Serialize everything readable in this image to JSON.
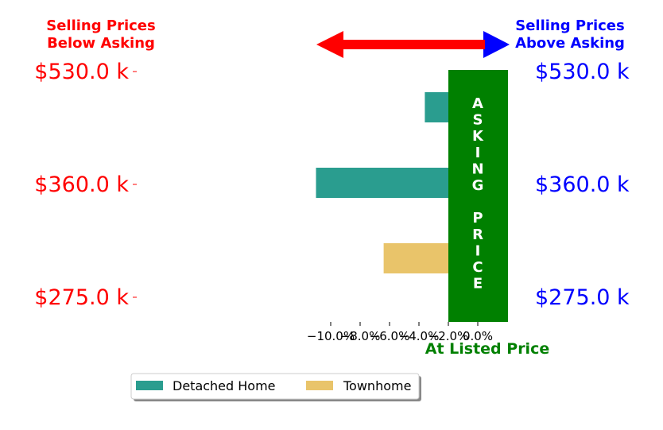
{
  "chart_data": {
    "type": "bar",
    "orientation": "horizontal",
    "header_left": [
      "Selling Prices",
      "Below Asking"
    ],
    "header_right": [
      "Selling Prices",
      "Above Asking"
    ],
    "price_labels": [
      "$530.0 k",
      "$360.0 k",
      "$275.0 k"
    ],
    "center_band_letters": [
      "A",
      "S",
      "K",
      "I",
      "N",
      "G",
      "",
      "P",
      "R",
      "I",
      "C",
      "E"
    ],
    "xlabel": "At Listed Price",
    "x_ticks": [
      -10,
      -8,
      -6,
      -4,
      -2,
      0
    ],
    "x_tick_labels": [
      "−10.0%",
      "−8.0%",
      "−6.0%",
      "−4.0%",
      "−2.0%",
      "0.0%"
    ],
    "xlim": [
      -11.5,
      3.0
    ],
    "series": [
      {
        "name": "Detached Home",
        "color": "#2a9d8f",
        "values": [
          -3.6,
          -11.0,
          -1.0
        ],
        "rows": [
          0,
          1,
          2
        ]
      },
      {
        "name": "Townhome",
        "color": "#e9c46a",
        "values": [
          0.0,
          0.0,
          -6.4
        ],
        "rows": [
          0,
          1,
          2
        ]
      }
    ],
    "above_bars": [
      {
        "series": "Detached Home",
        "row": 0,
        "value": 1.2
      },
      {
        "series": "Detached Home",
        "row": 1,
        "value": 1.2
      },
      {
        "series": "Detached Home",
        "row": 2,
        "value": 1.2
      }
    ],
    "band_range": [
      -1.0,
      1.0
    ],
    "colors": {
      "below": "#ff0000",
      "above": "#0000ff",
      "band": "#008000",
      "arrow": "#ff0000"
    },
    "legend": {
      "placement": "bottom-left",
      "entries": [
        "Detached Home",
        "Townhome"
      ]
    }
  }
}
